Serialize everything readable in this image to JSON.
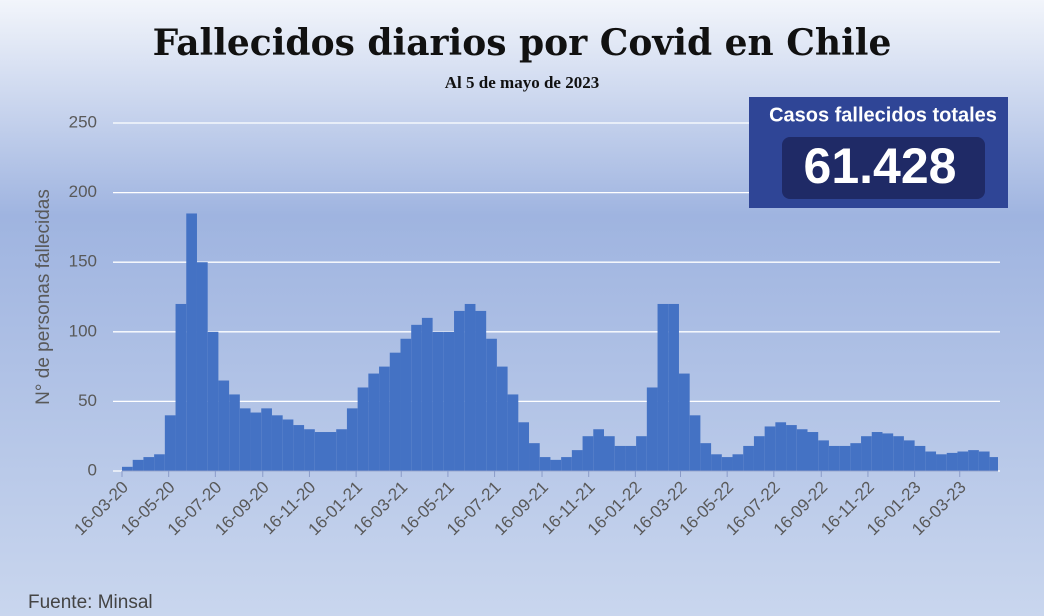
{
  "chart_data": {
    "type": "bar",
    "title": "Fallecidos diarios por Covid en Chile",
    "subtitle": "Al 5 de mayo de 2023",
    "y_label": "N° de personas fallecidas",
    "total_label": "Casos fallecidos totales",
    "total_value": "61.428",
    "source": "Fuente: Minsal",
    "color": "#4472c4",
    "grid": true,
    "x": [
      "2020-03-16",
      "2020-03-30",
      "2020-04-13",
      "2020-04-27",
      "2020-05-11",
      "2020-05-25",
      "2020-06-08",
      "2020-06-22",
      "2020-07-06",
      "2020-07-20",
      "2020-08-03",
      "2020-08-17",
      "2020-08-31",
      "2020-09-14",
      "2020-09-28",
      "2020-10-12",
      "2020-10-26",
      "2020-11-09",
      "2020-11-23",
      "2020-12-07",
      "2020-12-21",
      "2021-01-04",
      "2021-01-18",
      "2021-02-01",
      "2021-02-15",
      "2021-03-01",
      "2021-03-15",
      "2021-03-29",
      "2021-04-12",
      "2021-04-26",
      "2021-05-10",
      "2021-05-24",
      "2021-06-07",
      "2021-06-21",
      "2021-07-05",
      "2021-07-19",
      "2021-08-02",
      "2021-08-16",
      "2021-08-30",
      "2021-09-13",
      "2021-09-27",
      "2021-10-11",
      "2021-10-25",
      "2021-11-08",
      "2021-11-22",
      "2021-12-06",
      "2021-12-20",
      "2022-01-03",
      "2022-01-17",
      "2022-01-31",
      "2022-02-14",
      "2022-02-28",
      "2022-03-14",
      "2022-03-28",
      "2022-04-11",
      "2022-04-25",
      "2022-05-09",
      "2022-05-23",
      "2022-06-06",
      "2022-06-20",
      "2022-07-04",
      "2022-07-18",
      "2022-08-01",
      "2022-08-15",
      "2022-08-29",
      "2022-09-12",
      "2022-09-26",
      "2022-10-10",
      "2022-10-24",
      "2022-11-07",
      "2022-11-21",
      "2022-12-05",
      "2022-12-19",
      "2023-01-02",
      "2023-01-16",
      "2023-01-30",
      "2023-02-13",
      "2023-02-27",
      "2023-03-13",
      "2023-03-27",
      "2023-04-10",
      "2023-04-24"
    ],
    "values": [
      3,
      8,
      10,
      12,
      40,
      120,
      185,
      150,
      100,
      65,
      55,
      45,
      42,
      45,
      40,
      37,
      33,
      30,
      28,
      28,
      30,
      45,
      60,
      70,
      75,
      85,
      95,
      105,
      110,
      100,
      100,
      115,
      120,
      115,
      95,
      75,
      55,
      35,
      20,
      10,
      8,
      10,
      15,
      25,
      30,
      25,
      18,
      18,
      25,
      60,
      120,
      120,
      70,
      40,
      20,
      12,
      10,
      12,
      18,
      25,
      32,
      35,
      33,
      30,
      28,
      22,
      18,
      18,
      20,
      25,
      28,
      27,
      25,
      22,
      18,
      14,
      12,
      13,
      14,
      15,
      14,
      10
    ],
    "xlim": [
      "2020-03-16",
      "2023-05-05"
    ],
    "xticks": [
      {
        "value": "2020-03-16",
        "label": "16-03-20"
      },
      {
        "value": "2020-05-16",
        "label": "16-05-20"
      },
      {
        "value": "2020-07-16",
        "label": "16-07-20"
      },
      {
        "value": "2020-09-16",
        "label": "16-09-20"
      },
      {
        "value": "2020-11-16",
        "label": "16-11-20"
      },
      {
        "value": "2021-01-16",
        "label": "16-01-21"
      },
      {
        "value": "2021-03-16",
        "label": "16-03-21"
      },
      {
        "value": "2021-05-16",
        "label": "16-05-21"
      },
      {
        "value": "2021-07-16",
        "label": "16-07-21"
      },
      {
        "value": "2021-09-16",
        "label": "16-09-21"
      },
      {
        "value": "2021-11-16",
        "label": "16-11-21"
      },
      {
        "value": "2022-01-16",
        "label": "16-01-22"
      },
      {
        "value": "2022-03-16",
        "label": "16-03-22"
      },
      {
        "value": "2022-05-16",
        "label": "16-05-22"
      },
      {
        "value": "2022-07-16",
        "label": "16-07-22"
      },
      {
        "value": "2022-09-16",
        "label": "16-09-22"
      },
      {
        "value": "2022-11-16",
        "label": "16-11-22"
      },
      {
        "value": "2023-01-16",
        "label": "16-01-23"
      },
      {
        "value": "2023-03-16",
        "label": "16-03-23"
      }
    ],
    "ylim": [
      0,
      250
    ],
    "yticks": [
      0,
      50,
      100,
      150,
      200,
      250
    ]
  }
}
